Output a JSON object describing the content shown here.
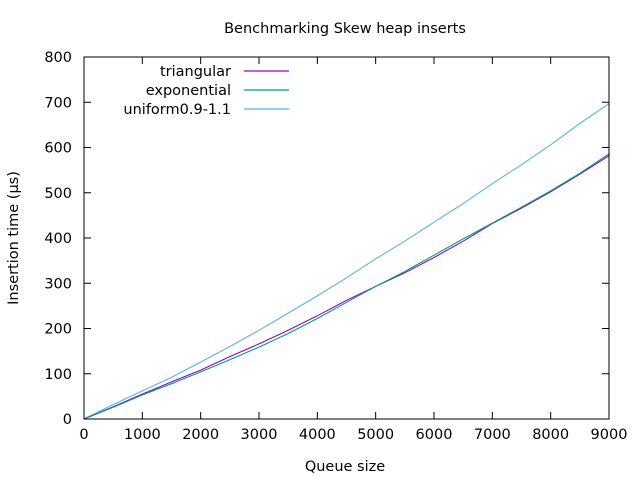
{
  "chart_data": {
    "type": "line",
    "title": "Benchmarking Skew heap inserts",
    "xlabel": "Queue size",
    "ylabel": "Insertion time (µs)",
    "xlim": [
      0,
      9000
    ],
    "ylim": [
      0,
      800
    ],
    "xticks": [
      0,
      1000,
      2000,
      3000,
      4000,
      5000,
      6000,
      7000,
      8000,
      9000
    ],
    "yticks": [
      0,
      100,
      200,
      300,
      400,
      500,
      600,
      700,
      800
    ],
    "xtick_labels": [
      "0",
      "1000",
      "2000",
      "3000",
      "4000",
      "5000",
      "6000",
      "7000",
      "8000",
      "9000"
    ],
    "ytick_labels": [
      "0",
      "100",
      "200",
      "300",
      "400",
      "500",
      "600",
      "700",
      "800"
    ],
    "grid": false,
    "legend_position": "top-left",
    "series": [
      {
        "name": "triangular",
        "color": "#9400d3",
        "x": [
          0,
          500,
          1000,
          1500,
          2000,
          2500,
          3000,
          3500,
          4000,
          4500,
          5000,
          5500,
          6000,
          6500,
          7000,
          7500,
          8000,
          8500,
          9000
        ],
        "y": [
          0,
          27,
          55,
          82,
          108,
          138,
          166,
          196,
          228,
          262,
          293,
          323,
          357,
          393,
          432,
          466,
          502,
          541,
          582
        ]
      },
      {
        "name": "exponential",
        "color": "#009e73",
        "x": [
          0,
          500,
          1000,
          1500,
          2000,
          2500,
          3000,
          3500,
          4000,
          4500,
          5000,
          5500,
          6000,
          6500,
          7000,
          7500,
          8000,
          8500,
          9000
        ],
        "y": [
          0,
          26,
          53,
          78,
          104,
          131,
          159,
          189,
          222,
          258,
          293,
          326,
          362,
          398,
          433,
          468,
          504,
          543,
          586
        ]
      },
      {
        "name": "uniform0.9-1.1",
        "color": "#56b4e9",
        "x": [
          0,
          500,
          1000,
          1500,
          2000,
          2500,
          3000,
          3500,
          4000,
          4500,
          5000,
          5500,
          6000,
          6500,
          7000,
          7500,
          8000,
          8500,
          9000
        ],
        "y": [
          0,
          32,
          62,
          92,
          126,
          160,
          196,
          234,
          272,
          312,
          354,
          393,
          435,
          476,
          520,
          562,
          606,
          653,
          697
        ]
      }
    ]
  }
}
